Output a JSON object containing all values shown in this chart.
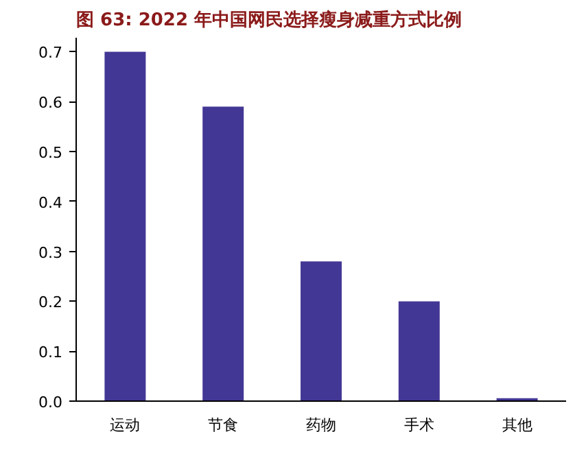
{
  "chart_data": {
    "type": "bar",
    "title": "图 63:  2022 年中国网民选择瘦身减重方式比例",
    "categories": [
      "运动",
      "节食",
      "药物",
      "手术",
      "其他"
    ],
    "values": [
      0.7,
      0.59,
      0.28,
      0.2,
      0.006
    ],
    "color": "#433795",
    "ylim": [
      0,
      0.7
    ],
    "yticks": [
      {
        "value": 0,
        "label": "0.0"
      },
      0.1,
      0.2,
      0.3,
      0.4,
      0.5,
      0.6,
      0.7
    ],
    "grid": false
  }
}
